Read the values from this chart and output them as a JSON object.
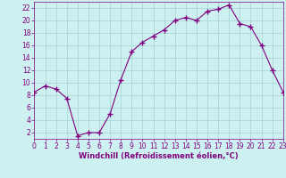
{
  "x": [
    0,
    1,
    2,
    3,
    4,
    5,
    6,
    7,
    8,
    9,
    10,
    11,
    12,
    13,
    14,
    15,
    16,
    17,
    18,
    19,
    20,
    21,
    22,
    23
  ],
  "y": [
    8.5,
    9.5,
    9.0,
    7.5,
    1.5,
    2.0,
    2.0,
    5.0,
    10.5,
    15.0,
    16.5,
    17.5,
    18.5,
    20.0,
    20.5,
    20.0,
    21.5,
    21.8,
    22.5,
    19.5,
    19.0,
    16.0,
    12.0,
    8.5
  ],
  "line_color": "#800080",
  "marker": "+",
  "marker_size": 4,
  "marker_lw": 1.0,
  "bg_color": "#cdf0f0",
  "grid_color": "#aad8d8",
  "xlabel": "Windchill (Refroidissement éolien,°C)",
  "xlabel_color": "#800080",
  "tick_color": "#800080",
  "xlim": [
    0,
    23
  ],
  "ylim": [
    1,
    23
  ],
  "yticks": [
    2,
    4,
    6,
    8,
    10,
    12,
    14,
    16,
    18,
    20,
    22
  ],
  "xticks": [
    0,
    1,
    2,
    3,
    4,
    5,
    6,
    7,
    8,
    9,
    10,
    11,
    12,
    13,
    14,
    15,
    16,
    17,
    18,
    19,
    20,
    21,
    22,
    23
  ],
  "tick_fontsize": 5.5,
  "xlabel_fontsize": 6.0
}
